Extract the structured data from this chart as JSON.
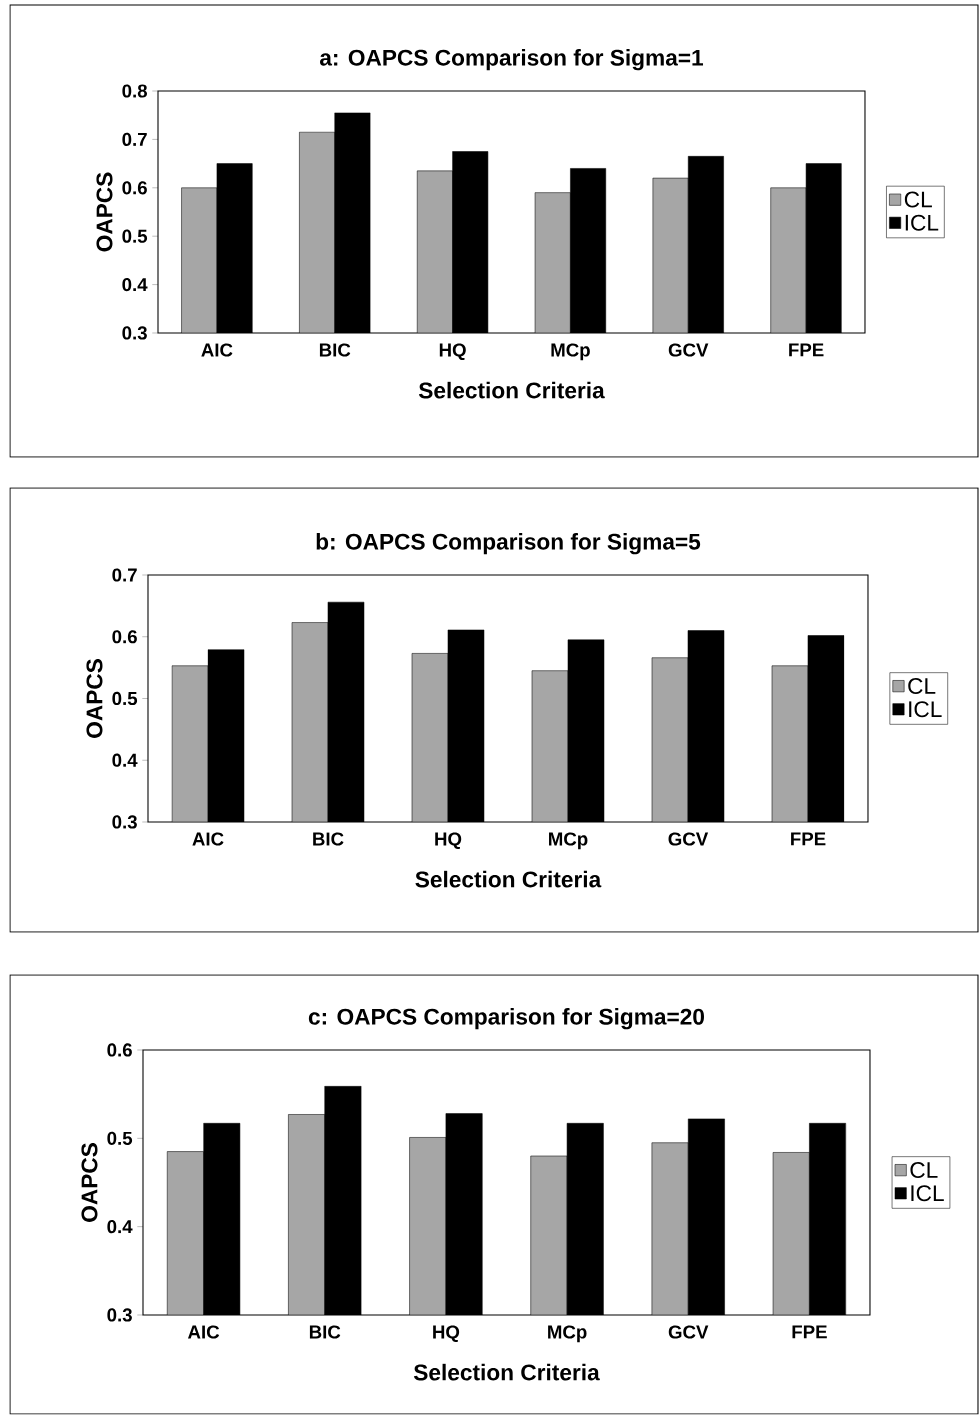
{
  "chart_data": [
    {
      "type": "bar",
      "title": "a: OAPCS Comparison for Sigma=1",
      "xlabel": "Selection Criteria",
      "ylabel": "OAPCS",
      "categories": [
        "AIC",
        "BIC",
        "HQ",
        "MCp",
        "GCV",
        "FPE"
      ],
      "series": [
        {
          "name": "CL",
          "color": "#a6a6a6",
          "values": [
            0.6,
            0.715,
            0.635,
            0.59,
            0.62,
            0.6
          ]
        },
        {
          "name": "ICL",
          "color": "#000000",
          "values": [
            0.65,
            0.755,
            0.675,
            0.64,
            0.665,
            0.65
          ]
        }
      ],
      "ylim": [
        0.3,
        0.8
      ],
      "yticks": [
        0.3,
        0.4,
        0.5,
        0.6,
        0.7,
        0.8
      ],
      "legend": "right"
    },
    {
      "type": "bar",
      "title": "b: OAPCS Comparison for Sigma=5",
      "xlabel": "Selection Criteria",
      "ylabel": "OAPCS",
      "categories": [
        "AIC",
        "BIC",
        "HQ",
        "MCp",
        "GCV",
        "FPE"
      ],
      "series": [
        {
          "name": "CL",
          "color": "#a6a6a6",
          "values": [
            0.553,
            0.623,
            0.573,
            0.545,
            0.566,
            0.553
          ]
        },
        {
          "name": "ICL",
          "color": "#000000",
          "values": [
            0.579,
            0.656,
            0.611,
            0.595,
            0.61,
            0.602
          ]
        }
      ],
      "ylim": [
        0.3,
        0.7
      ],
      "yticks": [
        0.3,
        0.4,
        0.5,
        0.6,
        0.7
      ],
      "legend": "right"
    },
    {
      "type": "bar",
      "title": "c: OAPCS Comparison for Sigma=20",
      "xlabel": "Selection Criteria",
      "ylabel": "OAPCS",
      "categories": [
        "AIC",
        "BIC",
        "HQ",
        "MCp",
        "GCV",
        "FPE"
      ],
      "series": [
        {
          "name": "CL",
          "color": "#a6a6a6",
          "values": [
            0.485,
            0.527,
            0.501,
            0.48,
            0.495,
            0.484
          ]
        },
        {
          "name": "ICL",
          "color": "#000000",
          "values": [
            0.517,
            0.559,
            0.528,
            0.517,
            0.522,
            0.517
          ]
        }
      ],
      "ylim": [
        0.3,
        0.6
      ],
      "yticks": [
        0.3,
        0.4,
        0.5,
        0.6
      ],
      "legend": "right"
    }
  ]
}
